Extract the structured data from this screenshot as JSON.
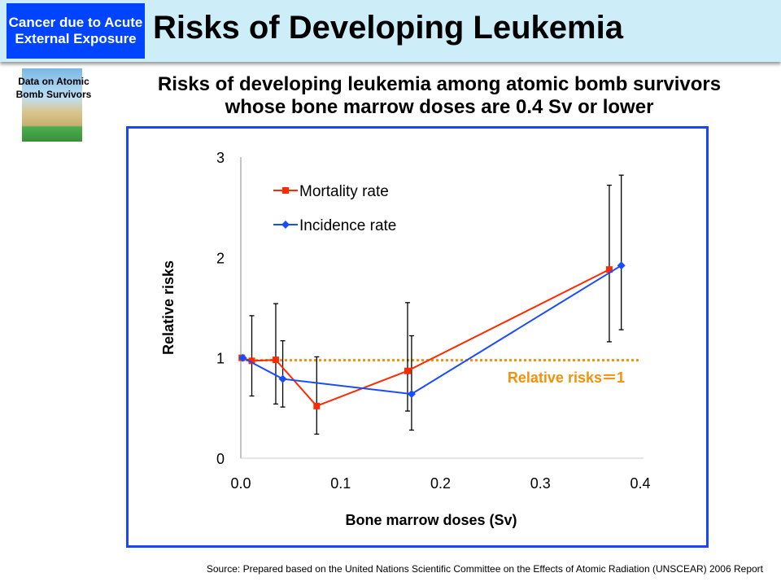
{
  "header": {
    "tag": "Cancer due to Acute External Exposure",
    "title": "Risks of Developing Leukemia"
  },
  "logo": {
    "text": "Data on Atomic Bomb Survivors"
  },
  "subtitle_line1": "Risks of developing leukemia among atomic bomb survivors",
  "subtitle_line2": "whose bone marrow doses are 0.4 Sv or lower",
  "source": "Source: Prepared based on the United Nations Scientific Committee on the Effects of Atomic Radiation (UNSCEAR) 2006 Report",
  "chart_data": {
    "type": "line",
    "xlabel": "Bone marrow doses (Sv)",
    "ylabel": "Relative risks",
    "xlim": [
      0,
      0.4
    ],
    "ylim": [
      0,
      3
    ],
    "xticks": [
      "0.0",
      "0.1",
      "0.2",
      "0.3",
      "0.4"
    ],
    "yticks": [
      "0",
      "1",
      "2",
      "3"
    ],
    "legend_position": "top-left",
    "grid": false,
    "reference_line": {
      "y": 1,
      "label": "Relative risks＝1",
      "color": "#f5900a"
    },
    "series": [
      {
        "name": "Mortality rate",
        "color": "#ff2a00",
        "marker": "square",
        "x": [
          0.001,
          0.011,
          0.035,
          0.076,
          0.167,
          0.369
        ],
        "y": [
          1.0,
          0.97,
          0.98,
          0.52,
          0.87,
          1.88
        ],
        "err_low": [
          null,
          0.62,
          0.54,
          0.24,
          0.47,
          1.16
        ],
        "err_high": [
          null,
          1.42,
          1.54,
          1.01,
          1.55,
          2.72
        ]
      },
      {
        "name": "Incidence rate",
        "color": "#1a4cff",
        "marker": "diamond",
        "x": [
          0.002,
          0.042,
          0.171,
          0.381
        ],
        "y": [
          1.0,
          0.79,
          0.64,
          1.92
        ],
        "err_low": [
          null,
          0.51,
          0.28,
          1.28
        ],
        "err_high": [
          null,
          1.17,
          1.22,
          2.82
        ]
      }
    ]
  }
}
